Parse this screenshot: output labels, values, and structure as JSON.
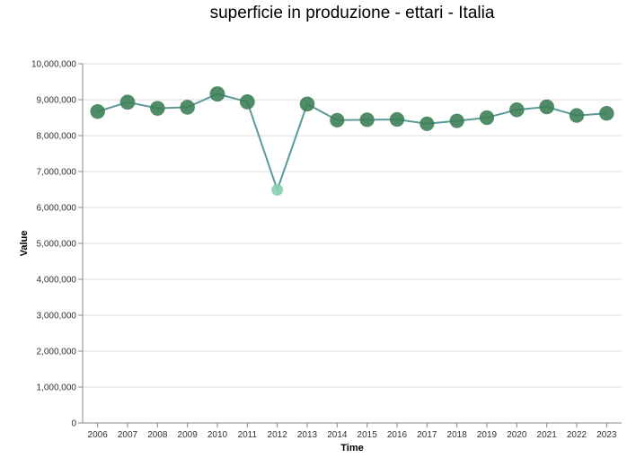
{
  "chart_data": {
    "type": "line",
    "title": "superficie in produzione - ettari - Italia",
    "xlabel": "Time",
    "ylabel": "Value",
    "ylim": [
      0,
      10000000
    ],
    "yticks": [
      "0",
      "1,000,000",
      "2,000,000",
      "3,000,000",
      "4,000,000",
      "5,000,000",
      "6,000,000",
      "7,000,000",
      "8,000,000",
      "9,000,000",
      "10,000,000"
    ],
    "categories": [
      "2006",
      "2007",
      "2008",
      "2009",
      "2010",
      "2011",
      "2012",
      "2013",
      "2014",
      "2015",
      "2016",
      "2017",
      "2018",
      "2019",
      "2020",
      "2021",
      "2022",
      "2023"
    ],
    "series": [
      {
        "values": [
          8670000,
          8930000,
          8760000,
          8790000,
          9160000,
          8940000,
          6490000,
          8880000,
          8430000,
          8440000,
          8450000,
          8330000,
          8410000,
          8500000,
          8720000,
          8800000,
          8560000,
          8620000
        ]
      }
    ],
    "grid": true,
    "colors": {
      "line": "#5b9a9a",
      "point_dark": "#3d7f57",
      "point_light": "#87cfb0",
      "grid": "#dddddd",
      "axis": "#888888"
    }
  }
}
